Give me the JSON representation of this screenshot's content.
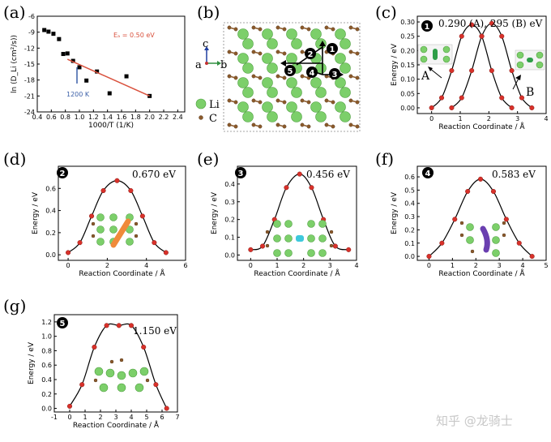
{
  "watermark": "知乎 @龙骑士",
  "panels": {
    "a": {
      "label": "(a)",
      "ea_text": "Eₐ = 0.50 eV",
      "marker_text": "1200 K"
    },
    "b": {
      "label": "(b)",
      "axis_c": "c",
      "axis_a": "a",
      "axis_b": "b",
      "legend_li": "Li",
      "legend_c": "C",
      "paths": [
        "1",
        "2",
        "3",
        "4",
        "5"
      ]
    },
    "c": {
      "label": "(c)",
      "badge": "1",
      "energy_text": "0.290 (A), 295 (B) eV",
      "site_a": "A",
      "site_b": "B"
    },
    "d": {
      "label": "(d)",
      "badge": "2",
      "energy_text": "0.670 eV"
    },
    "e": {
      "label": "(e)",
      "badge": "3",
      "energy_text": "0.456 eV"
    },
    "f": {
      "label": "(f)",
      "badge": "4",
      "energy_text": "0.583 eV"
    },
    "g": {
      "label": "(g)",
      "badge": "5",
      "energy_text": "1.150 eV"
    }
  },
  "colors": {
    "points": "#d8312a",
    "fit": "#d9513d",
    "marker": "#3b5fa8",
    "li": "#7ccf6a",
    "c": "#8b5a2b"
  },
  "chart_data": [
    {
      "id": "a",
      "type": "scatter",
      "title": "",
      "xlabel": "1000/T (1/K)",
      "ylabel": "ln (D_Li (cm²/s))",
      "xlim": [
        0.4,
        2.5
      ],
      "ylim": [
        -24,
        -6
      ],
      "xticks": [
        0.4,
        0.6,
        0.8,
        1.0,
        1.2,
        1.4,
        1.6,
        1.8,
        2.0,
        2.2,
        2.4
      ],
      "xtick_labels": [
        "0.4",
        "0.6",
        "0.8",
        "1.0",
        "1.2",
        "1.4",
        "1.6",
        "1.8",
        "2.0",
        "2.2",
        "2.4"
      ],
      "yticks": [
        -6,
        -9,
        -12,
        -15,
        -18,
        -21,
        -24
      ],
      "ytick_labels": [
        "-6",
        "-9",
        "-12",
        "-15",
        "-18",
        "-21",
        "-24"
      ],
      "x": [
        0.5,
        0.56,
        0.63,
        0.71,
        0.77,
        0.83,
        0.91,
        1.0,
        1.1,
        1.25,
        1.43,
        1.67,
        2.0
      ],
      "y": [
        -8.6,
        -8.9,
        -9.3,
        -10.3,
        -13.1,
        -13.0,
        -14.4,
        -15.6,
        -18.1,
        -16.4,
        -20.5,
        -17.3,
        -21.0
      ],
      "fit": {
        "x": [
          0.83,
          2.0
        ],
        "y": [
          -14.1,
          -21.0
        ],
        "label": "Eₐ = 0.50 eV"
      },
      "marker": {
        "x": 0.83,
        "label": "1200 K"
      }
    },
    {
      "id": "c",
      "type": "line",
      "xlabel": "Reaction Coordinate / Å",
      "ylabel": "Energy / eV",
      "xlim": [
        -0.5,
        4.0
      ],
      "ylim": [
        -0.02,
        0.32
      ],
      "xticks": [
        0,
        1,
        2,
        3,
        4
      ],
      "xtick_labels": [
        "0",
        "1",
        "2",
        "3",
        "4"
      ],
      "yticks": [
        0.0,
        0.05,
        0.1,
        0.15,
        0.2,
        0.25,
        0.3
      ],
      "ytick_labels": [
        "0.00",
        "0.05",
        "0.10",
        "0.15",
        "0.20",
        "0.25",
        "0.30"
      ],
      "series": [
        {
          "name": "A",
          "x": [
            0.0,
            0.35,
            0.7,
            1.05,
            1.4,
            1.75,
            2.1,
            2.45,
            2.8
          ],
          "y": [
            0.0,
            0.035,
            0.13,
            0.25,
            0.29,
            0.25,
            0.13,
            0.035,
            0.0
          ]
        },
        {
          "name": "B",
          "x": [
            0.7,
            1.05,
            1.4,
            1.75,
            2.1,
            2.45,
            2.8,
            3.15,
            3.5
          ],
          "y": [
            0.0,
            0.035,
            0.13,
            0.25,
            0.295,
            0.25,
            0.13,
            0.035,
            0.0
          ]
        }
      ],
      "annotation": "0.290 (A), 295 (B) eV"
    },
    {
      "id": "d",
      "type": "line",
      "xlabel": "Reaction Coordinate / Å",
      "ylabel": "Energy / eV",
      "xlim": [
        -0.5,
        6.0
      ],
      "ylim": [
        -0.05,
        0.8
      ],
      "xticks": [
        0,
        2,
        4,
        6
      ],
      "xtick_labels": [
        "0",
        "2",
        "4",
        "6"
      ],
      "yticks": [
        0.0,
        0.2,
        0.4,
        0.6
      ],
      "ytick_labels": [
        "0.0",
        "0.2",
        "0.4",
        "0.6"
      ],
      "x": [
        0.0,
        0.6,
        1.2,
        1.8,
        2.5,
        3.2,
        3.8,
        4.4,
        5.0
      ],
      "y": [
        0.02,
        0.11,
        0.35,
        0.58,
        0.67,
        0.58,
        0.35,
        0.11,
        0.02
      ],
      "annotation": "0.670 eV"
    },
    {
      "id": "e",
      "type": "line",
      "xlabel": "Reaction Coordinate / Å",
      "ylabel": "Energy / eV",
      "xlim": [
        -0.5,
        4.0
      ],
      "ylim": [
        -0.03,
        0.5
      ],
      "xticks": [
        0,
        1,
        2,
        3,
        4
      ],
      "xtick_labels": [
        "0",
        "1",
        "2",
        "3",
        "4"
      ],
      "yticks": [
        0.0,
        0.1,
        0.2,
        0.3,
        0.4
      ],
      "ytick_labels": [
        "0.0",
        "0.1",
        "0.2",
        "0.3",
        "0.4"
      ],
      "x": [
        0.0,
        0.45,
        0.9,
        1.35,
        1.85,
        2.3,
        2.75,
        3.2,
        3.7
      ],
      "y": [
        0.03,
        0.05,
        0.2,
        0.38,
        0.456,
        0.38,
        0.2,
        0.05,
        0.03
      ],
      "annotation": "0.456 eV"
    },
    {
      "id": "f",
      "type": "line",
      "xlabel": "Reaction Coordinate / Å",
      "ylabel": "Energy / eV",
      "xlim": [
        -0.5,
        5.0
      ],
      "ylim": [
        -0.03,
        0.68
      ],
      "xticks": [
        0,
        1,
        2,
        3,
        4,
        5
      ],
      "xtick_labels": [
        "0",
        "1",
        "2",
        "3",
        "4",
        "5"
      ],
      "yticks": [
        0.0,
        0.1,
        0.2,
        0.3,
        0.4,
        0.5,
        0.6
      ],
      "ytick_labels": [
        "0.0",
        "0.1",
        "0.2",
        "0.3",
        "0.4",
        "0.5",
        "0.6"
      ],
      "x": [
        0.0,
        0.55,
        1.1,
        1.65,
        2.2,
        2.75,
        3.3,
        3.85,
        4.4
      ],
      "y": [
        0.0,
        0.1,
        0.28,
        0.49,
        0.583,
        0.49,
        0.28,
        0.1,
        0.0
      ],
      "annotation": "0.583 eV"
    },
    {
      "id": "g",
      "type": "line",
      "xlabel": "Reaction Coordinate / Å",
      "ylabel": "Energy / eV",
      "xlim": [
        -1.0,
        7.0
      ],
      "ylim": [
        -0.05,
        1.3
      ],
      "xticks": [
        -1,
        0,
        1,
        2,
        3,
        4,
        5,
        6,
        7
      ],
      "xtick_labels": [
        "-1",
        "0",
        "1",
        "2",
        "3",
        "4",
        "5",
        "6",
        "7"
      ],
      "yticks": [
        0.0,
        0.2,
        0.4,
        0.6,
        0.8,
        1.0,
        1.2
      ],
      "ytick_labels": [
        "0.0",
        "0.2",
        "0.4",
        "0.6",
        "0.8",
        "1.0",
        "1.2"
      ],
      "x": [
        0.0,
        0.8,
        1.6,
        2.4,
        3.2,
        4.0,
        4.8,
        5.6,
        6.3
      ],
      "y": [
        0.03,
        0.33,
        0.85,
        1.15,
        1.15,
        1.15,
        0.85,
        0.33,
        0.0
      ],
      "annotation": "1.150 eV"
    }
  ]
}
